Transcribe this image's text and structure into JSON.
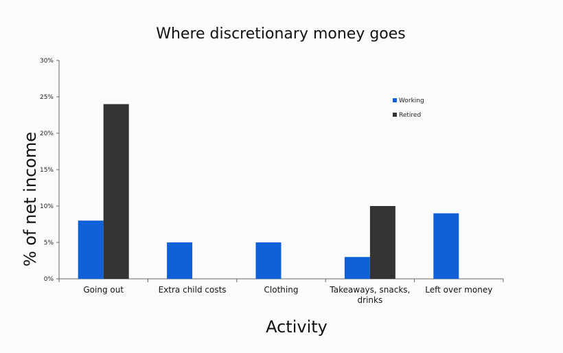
{
  "chart_data": {
    "type": "bar",
    "title": "Where discretionary money goes",
    "xlabel": "Activity",
    "ylabel": "% of net income",
    "ylim": [
      0,
      0.3
    ],
    "yticks": [
      0,
      0.05,
      0.1,
      0.15,
      0.2,
      0.25,
      0.3
    ],
    "ytick_labels": [
      "0%",
      "5%",
      "10%",
      "15%",
      "20%",
      "25%",
      "30%"
    ],
    "categories": [
      [
        "Going out"
      ],
      [
        "Extra child costs"
      ],
      [
        "Clothing"
      ],
      [
        "Takeaways, snacks,",
        "drinks"
      ],
      [
        "Left over money"
      ]
    ],
    "series": [
      {
        "name": "Working",
        "color": "#1060D8",
        "values": [
          0.08,
          0.05,
          0.05,
          0.03,
          0.09
        ]
      },
      {
        "name": "Retired",
        "color": "#333333",
        "values": [
          0.24,
          0,
          0,
          0.1,
          0
        ]
      }
    ],
    "legend_position": "top-right",
    "grid": false
  }
}
